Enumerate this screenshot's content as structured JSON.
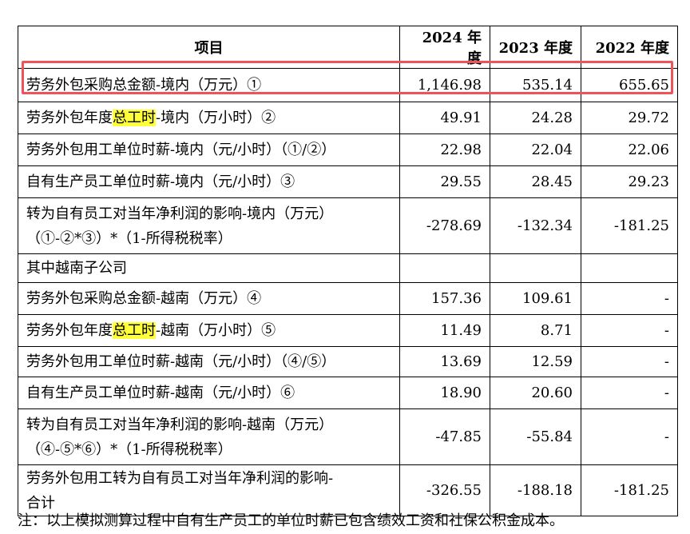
{
  "table": {
    "header": [
      "项目",
      "2024 年度",
      "2023 年度",
      "2022 年度"
    ],
    "rows": [
      {
        "item": [
          [
            {
              "text": "劳务外包采购总金额-境内（万元）①"
            }
          ]
        ],
        "values": [
          "1,146.98",
          "535.14",
          "655.65"
        ],
        "outlined": true
      },
      {
        "item": [
          [
            {
              "text": "劳务外包年度"
            },
            {
              "text": "总工时",
              "highlight": true
            },
            {
              "text": "-境内（万小时）②"
            }
          ]
        ],
        "values": [
          "49.91",
          "24.28",
          "29.72"
        ]
      },
      {
        "item": [
          [
            {
              "text": "劳务外包用工单位时薪-境内（元/小时）（①/②）"
            }
          ]
        ],
        "values": [
          "22.98",
          "22.04",
          "22.06"
        ]
      },
      {
        "item": [
          [
            {
              "text": "自有生产员工单位时薪-境内（元/小时）③"
            }
          ]
        ],
        "values": [
          "29.55",
          "28.45",
          "29.23"
        ]
      },
      {
        "item": [
          [
            {
              "text": "转为自有员工对当年净利润的影响-境内（万元）"
            }
          ],
          [
            {
              "text": "（①-②*③）*（1-所得税税率）"
            }
          ]
        ],
        "values": [
          "-278.69",
          "-132.34",
          "-181.25"
        ]
      },
      {
        "item": [
          [
            {
              "text": "其中越南子公司"
            }
          ]
        ],
        "values": [
          "",
          "",
          ""
        ]
      },
      {
        "item": [
          [
            {
              "text": "劳务外包采购总金额-越南（万元）④"
            }
          ]
        ],
        "values": [
          "157.36",
          "109.61",
          "-"
        ]
      },
      {
        "item": [
          [
            {
              "text": "劳务外包年度"
            },
            {
              "text": "总工时",
              "highlight": true
            },
            {
              "text": "-越南（万小时）⑤"
            }
          ]
        ],
        "values": [
          "11.49",
          "8.71",
          "-"
        ]
      },
      {
        "item": [
          [
            {
              "text": "劳务外包用工单位时薪-越南（元/小时）（④/⑤）"
            }
          ]
        ],
        "values": [
          "13.69",
          "12.59",
          "-"
        ]
      },
      {
        "item": [
          [
            {
              "text": "自有生产员工单位时薪-越南（元/小时）⑥"
            }
          ]
        ],
        "values": [
          "18.90",
          "20.60",
          "-"
        ]
      },
      {
        "item": [
          [
            {
              "text": "转为自有员工对当年净利润的影响-越南（万元）"
            }
          ],
          [
            {
              "text": "（④-⑤*⑥）*（1-所得税税率）"
            }
          ]
        ],
        "values": [
          "-47.85",
          "-55.84",
          "-"
        ]
      },
      {
        "item": [
          [
            {
              "text": "劳务外包用工转为自有员工对当年净利润的影响-"
            }
          ],
          [
            {
              "text": "合计"
            }
          ]
        ],
        "values": [
          "-326.55",
          "-188.18",
          "-181.25"
        ]
      }
    ]
  },
  "note": "注：以上模拟测算过程中自有生产员工的单位时薪已包含绩效工资和社保公积金成本。"
}
